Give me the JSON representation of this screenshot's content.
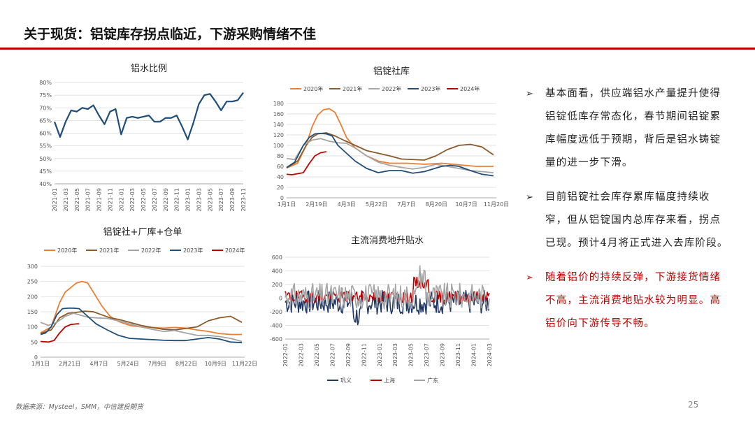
{
  "page": {
    "title": "关于现货：铝锭库存拐点临近，下游采购情绪不佳",
    "footer": "数据来源：Mysteel，SMM，中信建投期货",
    "page_number": "25",
    "colors": {
      "accent": "#c00000"
    }
  },
  "bullets": [
    {
      "text": "基本面看，供应端铝水产量提升使得铝锭低库存常态化，春节期间铝锭累库幅度远低于预期，背后是铝水铸锭量的进一步下滑。",
      "color": "#222222"
    },
    {
      "text": "目前铝锭社会库存累库幅度持续收窄，但从铝锭国内总库存来看，拐点已现。预计4月将正式进入去库阶段。",
      "color": "#222222"
    },
    {
      "text": "随着铝价的持续反弹，下游接货情绪不高，主流消费地贴水较为明显。高铝价向下游传导不畅。",
      "color": "#c00000"
    }
  ],
  "chart_data": [
    {
      "type": "line",
      "title": "铝水比例",
      "x": [
        "2021-01",
        "2021-02",
        "2021-03",
        "2021-04",
        "2021-05",
        "2021-06",
        "2021-07",
        "2021-08",
        "2021-09",
        "2021-10",
        "2021-11",
        "2021-12",
        "2022-01",
        "2022-02",
        "2022-03",
        "2022-04",
        "2022-05",
        "2022-06",
        "2022-07",
        "2022-08",
        "2022-09",
        "2022-10",
        "2022-11",
        "2022-12",
        "2023-01",
        "2023-02",
        "2023-03",
        "2023-04",
        "2023-05",
        "2023-06",
        "2023-07",
        "2023-08",
        "2023-09",
        "2023-10",
        "2023-11"
      ],
      "xticks": [
        "2021-01",
        "2021-03",
        "2021-05",
        "2021-07",
        "2021-09",
        "2021-11",
        "2022-01",
        "2022-03",
        "2022-05",
        "2022-07",
        "2022-09",
        "2022-11",
        "2023-01",
        "2023-03",
        "2023-05",
        "2023-07",
        "2023-09",
        "2023-11"
      ],
      "series": [
        {
          "name": "",
          "color": "#1f4e79",
          "values": [
            64.5,
            58.5,
            64.5,
            69,
            68.5,
            70,
            69.5,
            71,
            67,
            63.5,
            68.5,
            69.5,
            59.5,
            66,
            66.5,
            66,
            66.5,
            67,
            64.5,
            64.5,
            66,
            66,
            67,
            62.5,
            57.5,
            64,
            71.5,
            75,
            75.5,
            72.5,
            69,
            72.5,
            72.5,
            73,
            76
          ]
        }
      ],
      "yticks": [
        "40%",
        "45%",
        "50%",
        "55%",
        "60%",
        "65%",
        "70%",
        "75%",
        "80%"
      ],
      "ylim": [
        40,
        80
      ]
    },
    {
      "type": "line",
      "title": "铝锭社库",
      "xticks": [
        "1月1日",
        "2月19日",
        "4月3日",
        "5月22日",
        "7月7日",
        "8月20日",
        "10月7日",
        "11月20日"
      ],
      "xlim": [
        1,
        365
      ],
      "yticks": [
        "0",
        "20",
        "40",
        "60",
        "80",
        "100",
        "120",
        "140",
        "160",
        "180"
      ],
      "ylim": [
        0,
        180
      ],
      "series": [
        {
          "name": "2020年",
          "color": "#ed7d31",
          "points": [
            [
              1,
              57
            ],
            [
              20,
              66
            ],
            [
              35,
              100
            ],
            [
              45,
              135
            ],
            [
              55,
              158
            ],
            [
              65,
              168
            ],
            [
              75,
              170
            ],
            [
              85,
              163
            ],
            [
              95,
              140
            ],
            [
              105,
              115
            ],
            [
              120,
              95
            ],
            [
              140,
              80
            ],
            [
              160,
              70
            ],
            [
              180,
              66
            ],
            [
              210,
              66
            ],
            [
              240,
              64
            ],
            [
              270,
              66
            ],
            [
              300,
              63
            ],
            [
              330,
              60
            ],
            [
              360,
              60
            ]
          ]
        },
        {
          "name": "2021年",
          "color": "#8c5a2a",
          "points": [
            [
              1,
              57
            ],
            [
              20,
              70
            ],
            [
              35,
              100
            ],
            [
              45,
              115
            ],
            [
              55,
              122
            ],
            [
              70,
              124
            ],
            [
              85,
              118
            ],
            [
              100,
              110
            ],
            [
              120,
              100
            ],
            [
              140,
              90
            ],
            [
              160,
              85
            ],
            [
              180,
              80
            ],
            [
              200,
              74
            ],
            [
              220,
              73
            ],
            [
              240,
              72
            ],
            [
              260,
              80
            ],
            [
              280,
              92
            ],
            [
              300,
              100
            ],
            [
              320,
              102
            ],
            [
              340,
              97
            ],
            [
              360,
              82
            ]
          ]
        },
        {
          "name": "2022年",
          "color": "#a5a5a5",
          "points": [
            [
              1,
              75
            ],
            [
              15,
              73
            ],
            [
              30,
              100
            ],
            [
              45,
              110
            ],
            [
              60,
              113
            ],
            [
              75,
              108
            ],
            [
              90,
              105
            ],
            [
              105,
              104
            ],
            [
              120,
              95
            ],
            [
              140,
              80
            ],
            [
              160,
              68
            ],
            [
              180,
              62
            ],
            [
              200,
              58
            ],
            [
              220,
              55
            ],
            [
              240,
              58
            ],
            [
              260,
              64
            ],
            [
              280,
              60
            ],
            [
              300,
              56
            ],
            [
              320,
              52
            ],
            [
              340,
              50
            ],
            [
              360,
              48
            ]
          ]
        },
        {
          "name": "2023年",
          "color": "#1f4e79",
          "points": [
            [
              1,
              58
            ],
            [
              15,
              68
            ],
            [
              30,
              100
            ],
            [
              40,
              115
            ],
            [
              50,
              122
            ],
            [
              60,
              123
            ],
            [
              70,
              122
            ],
            [
              80,
              118
            ],
            [
              90,
              100
            ],
            [
              105,
              85
            ],
            [
              120,
              70
            ],
            [
              140,
              56
            ],
            [
              160,
              48
            ],
            [
              180,
              52
            ],
            [
              200,
              52
            ],
            [
              220,
              47
            ],
            [
              240,
              50
            ],
            [
              255,
              55
            ],
            [
              270,
              60
            ],
            [
              285,
              62
            ],
            [
              300,
              60
            ],
            [
              320,
              52
            ],
            [
              340,
              45
            ],
            [
              360,
              42
            ]
          ]
        },
        {
          "name": "2024年",
          "color": "#c00000",
          "points": [
            [
              1,
              45
            ],
            [
              10,
              44
            ],
            [
              20,
              46
            ],
            [
              30,
              48
            ],
            [
              40,
              65
            ],
            [
              50,
              80
            ],
            [
              60,
              86
            ],
            [
              70,
              88
            ]
          ]
        }
      ]
    },
    {
      "type": "line",
      "title": "铝锭社+厂库+仓单",
      "xticks": [
        "1月1日",
        "2月21日",
        "4月7日",
        "5月24日",
        "7月9日",
        "8月22日",
        "10月9日",
        "11月22日"
      ],
      "xlim": [
        1,
        365
      ],
      "yticks": [
        "0",
        "50",
        "100",
        "150",
        "200",
        "250",
        "300"
      ],
      "ylim": [
        0,
        300
      ],
      "series": [
        {
          "name": "2020年",
          "color": "#ed7d31",
          "points": [
            [
              1,
              80
            ],
            [
              20,
              100
            ],
            [
              35,
              180
            ],
            [
              45,
              215
            ],
            [
              55,
              230
            ],
            [
              65,
              245
            ],
            [
              75,
              250
            ],
            [
              85,
              245
            ],
            [
              95,
              215
            ],
            [
              110,
              170
            ],
            [
              125,
              135
            ],
            [
              140,
              118
            ],
            [
              160,
              105
            ],
            [
              180,
              100
            ],
            [
              200,
              98
            ],
            [
              220,
              96
            ],
            [
              240,
              98
            ],
            [
              260,
              96
            ],
            [
              280,
              90
            ],
            [
              300,
              85
            ],
            [
              320,
              78
            ],
            [
              340,
              75
            ],
            [
              360,
              75
            ]
          ]
        },
        {
          "name": "2021年",
          "color": "#8c5a2a",
          "points": [
            [
              1,
              78
            ],
            [
              20,
              90
            ],
            [
              35,
              130
            ],
            [
              50,
              145
            ],
            [
              65,
              148
            ],
            [
              80,
              152
            ],
            [
              95,
              150
            ],
            [
              110,
              140
            ],
            [
              125,
              130
            ],
            [
              140,
              125
            ],
            [
              160,
              115
            ],
            [
              180,
              105
            ],
            [
              200,
              98
            ],
            [
              220,
              92
            ],
            [
              240,
              90
            ],
            [
              260,
              95
            ],
            [
              280,
              100
            ],
            [
              300,
              120
            ],
            [
              320,
              130
            ],
            [
              340,
              135
            ],
            [
              360,
              115
            ]
          ]
        },
        {
          "name": "2022年",
          "color": "#a5a5a5",
          "points": [
            [
              1,
              115
            ],
            [
              15,
              105
            ],
            [
              30,
              115
            ],
            [
              45,
              135
            ],
            [
              60,
              145
            ],
            [
              70,
              140
            ],
            [
              85,
              132
            ],
            [
              100,
              130
            ],
            [
              120,
              128
            ],
            [
              140,
              120
            ],
            [
              160,
              110
            ],
            [
              180,
              100
            ],
            [
              200,
              92
            ],
            [
              220,
              85
            ],
            [
              240,
              88
            ],
            [
              260,
              80
            ],
            [
              280,
              72
            ],
            [
              300,
              72
            ],
            [
              320,
              68
            ],
            [
              340,
              62
            ],
            [
              360,
              52
            ]
          ]
        },
        {
          "name": "2023年",
          "color": "#1f4e79",
          "points": [
            [
              1,
              75
            ],
            [
              10,
              80
            ],
            [
              20,
              100
            ],
            [
              30,
              140
            ],
            [
              40,
              160
            ],
            [
              50,
              162
            ],
            [
              60,
              162
            ],
            [
              70,
              160
            ],
            [
              85,
              135
            ],
            [
              100,
              110
            ],
            [
              120,
              90
            ],
            [
              140,
              72
            ],
            [
              160,
              62
            ],
            [
              180,
              60
            ],
            [
              200,
              58
            ],
            [
              220,
              56
            ],
            [
              240,
              55
            ],
            [
              260,
              55
            ],
            [
              280,
              60
            ],
            [
              300,
              65
            ],
            [
              320,
              60
            ],
            [
              340,
              50
            ],
            [
              360,
              48
            ]
          ]
        },
        {
          "name": "2024年",
          "color": "#c00000",
          "points": [
            [
              1,
              52
            ],
            [
              15,
              50
            ],
            [
              25,
              55
            ],
            [
              35,
              80
            ],
            [
              45,
              100
            ],
            [
              55,
              108
            ],
            [
              65,
              110
            ],
            [
              70,
              110
            ]
          ]
        }
      ]
    },
    {
      "type": "line",
      "title": "主流消费地升贴水",
      "xticks": [
        "2022-01",
        "2022-03",
        "2022-05",
        "2022-07",
        "2022-09",
        "2022-11",
        "2023-01",
        "2023-03",
        "2023-05",
        "2023-07",
        "2023-09",
        "2023-11",
        "2024-01",
        "2024-03"
      ],
      "xlim": [
        0,
        27
      ],
      "yticks": [
        "-600",
        "-400",
        "-200",
        "0",
        "200",
        "400",
        "600"
      ],
      "ylim": [
        -600,
        600
      ],
      "series": [
        {
          "name": "巩义",
          "color": "#1f3864"
        },
        {
          "name": "上海",
          "color": "#c00000"
        },
        {
          "name": "广东",
          "color": "#a5a5a5"
        }
      ]
    }
  ]
}
